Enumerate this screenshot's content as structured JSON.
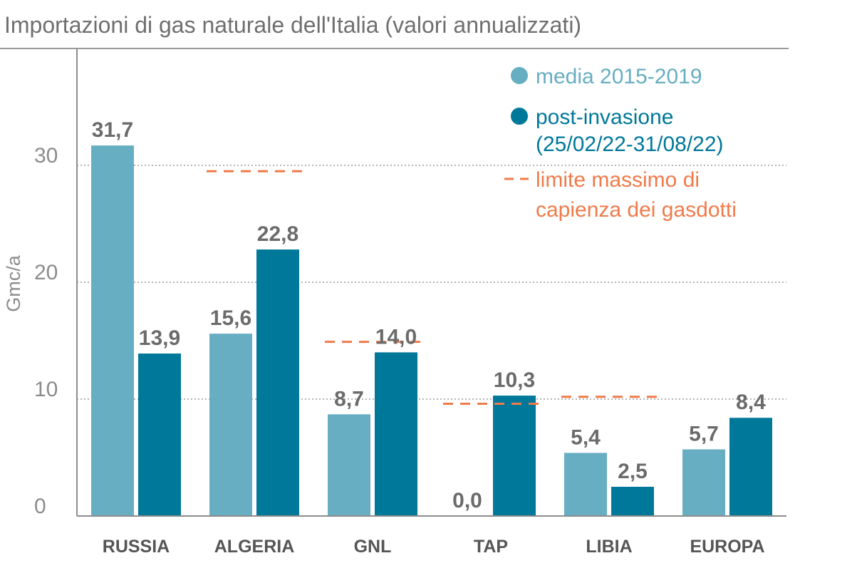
{
  "chart_data": {
    "type": "bar",
    "title": "Importazioni di gas naturale dell'Italia (valori annualizzati)",
    "ylabel": "Gmc/a",
    "ylim": [
      0,
      39
    ],
    "yticks": [
      "0",
      "10",
      "20",
      "30"
    ],
    "ytick_values": [
      0,
      10,
      20,
      30
    ],
    "grid": "horizontal dotted",
    "legend_position": "top-right",
    "categories": [
      "RUSSIA",
      "ALGERIA",
      "GNL",
      "TAP",
      "LIBIA",
      "EUROPA"
    ],
    "series": [
      {
        "name": "media 2015-2019",
        "color": "#67aec2",
        "values": [
          31.7,
          15.6,
          8.7,
          0.0,
          5.4,
          5.7
        ],
        "labels": [
          "31,7",
          "15,6",
          "8,7",
          "0,0",
          "5,4",
          "5,7"
        ]
      },
      {
        "name": "post-invasione",
        "name_line2": "(25/02/22-31/08/22)",
        "color": "#00789a",
        "values": [
          13.9,
          22.8,
          14.0,
          10.3,
          2.5,
          8.4
        ],
        "labels": [
          "13,9",
          "22,8",
          "14,0",
          "10,3",
          "2,5",
          "8,4"
        ]
      }
    ],
    "limit": {
      "name_line1": "limite massimo di",
      "name_line2": "capienza dei gasdotti",
      "color": "#f07a4a",
      "values": [
        null,
        29.5,
        14.9,
        9.6,
        10.2,
        null
      ]
    }
  }
}
